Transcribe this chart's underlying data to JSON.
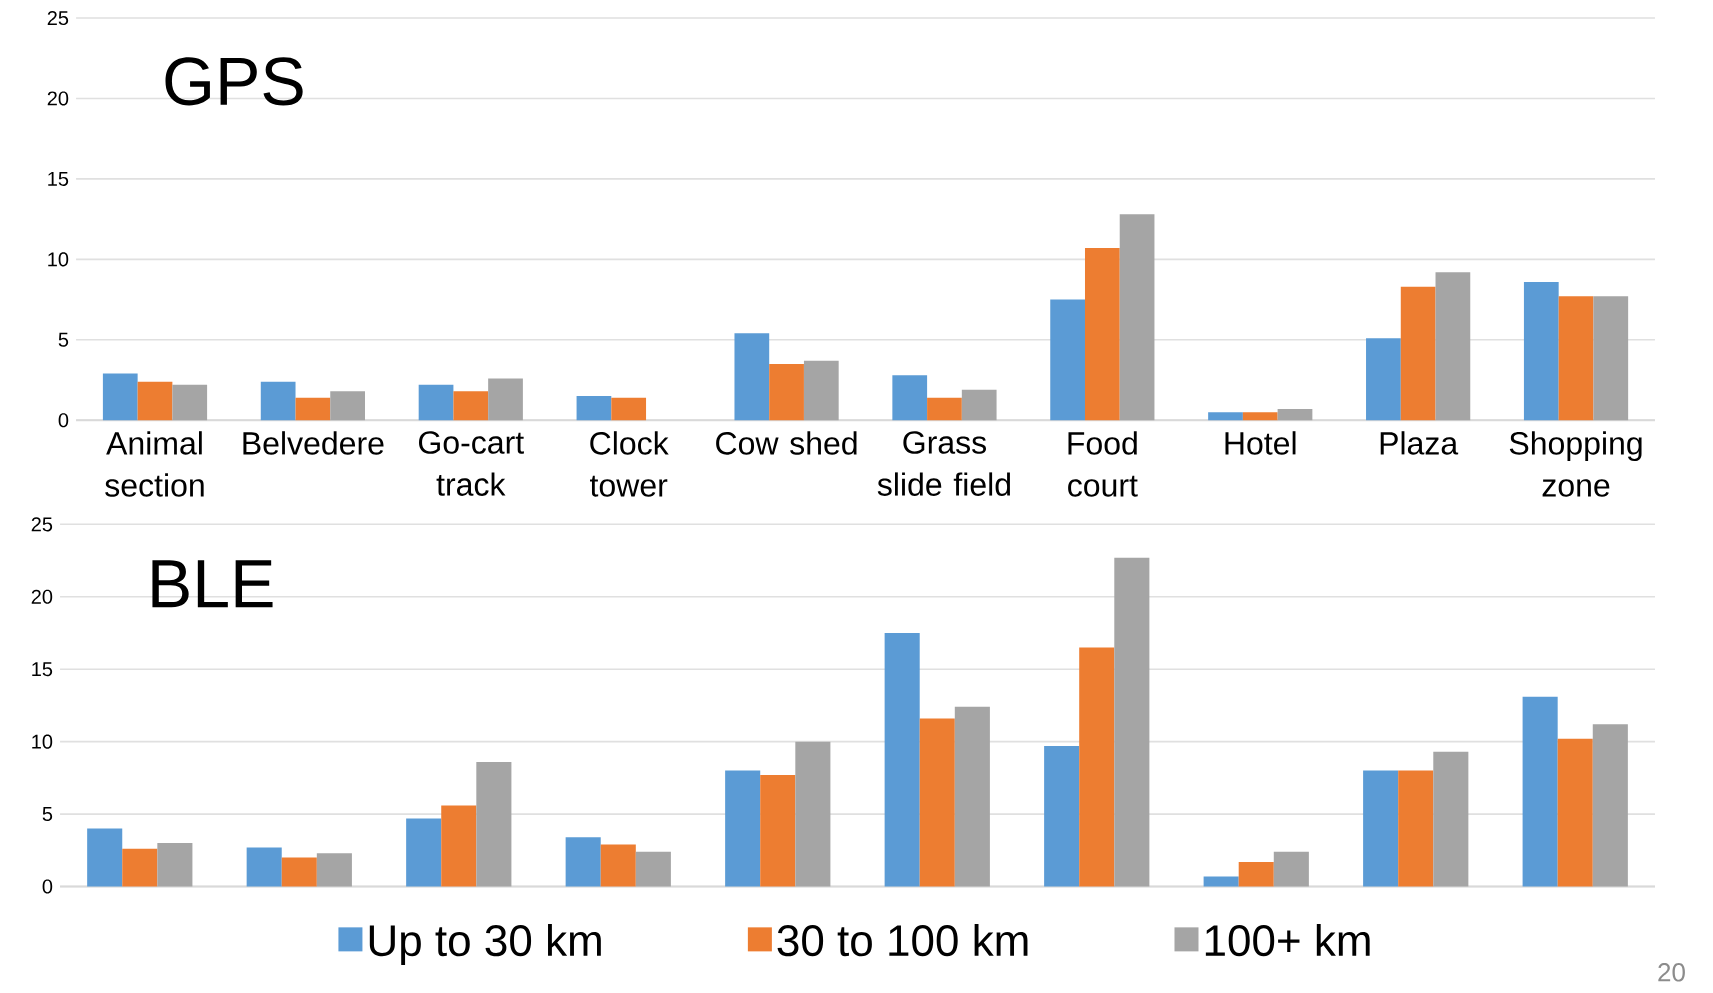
{
  "chart_data": [
    {
      "type": "bar",
      "title": "GPS",
      "categories": [
        "Animal section",
        "Belvedere",
        "Go-cart track",
        "Clock tower",
        "Cow shed",
        "Grass slide field",
        "Food court",
        "Hotel",
        "Plaza",
        "Shopping zone"
      ],
      "series": [
        {
          "color": "#5b9bd5",
          "values": [
            2.9,
            2.4,
            2.2,
            1.5,
            5.4,
            2.8,
            7.5,
            0.5,
            5.1,
            8.6
          ]
        },
        {
          "color": "#ed7d31",
          "values": [
            2.4,
            1.4,
            1.8,
            1.4,
            3.5,
            1.4,
            10.7,
            0.5,
            8.3,
            7.7
          ]
        },
        {
          "color": "#a5a5a5",
          "values": [
            2.2,
            1.8,
            2.6,
            null,
            3.7,
            1.9,
            12.8,
            0.7,
            9.2,
            7.7
          ]
        }
      ],
      "ylim": [
        0,
        25
      ],
      "yticks": [
        0,
        5,
        10,
        15,
        20,
        25
      ],
      "grid": "y"
    },
    {
      "type": "bar",
      "title": "BLE",
      "categories": [
        null,
        null,
        null,
        null,
        null,
        null,
        null,
        null,
        null,
        null
      ],
      "series": [
        {
          "name": "Up to 30 km",
          "color": "#5b9bd5",
          "values": [
            4.0,
            2.7,
            4.7,
            3.4,
            8.0,
            17.5,
            9.7,
            0.7,
            8.0,
            13.1
          ]
        },
        {
          "name": "30 to 100 km",
          "color": "#ed7d31",
          "values": [
            2.6,
            2.0,
            5.6,
            2.9,
            7.7,
            11.6,
            16.5,
            1.7,
            8.0,
            10.2
          ]
        },
        {
          "name": "100+ km",
          "color": "#a5a5a5",
          "values": [
            3.0,
            2.3,
            8.6,
            2.4,
            10.0,
            12.4,
            22.7,
            2.4,
            9.3,
            11.2
          ]
        }
      ],
      "ylim": [
        0,
        25
      ],
      "yticks": [
        0,
        5,
        10,
        15,
        20,
        25
      ],
      "grid": "y",
      "tick_labels": "y",
      "legend": "bottom",
      "annotations": [
        "20"
      ]
    }
  ]
}
